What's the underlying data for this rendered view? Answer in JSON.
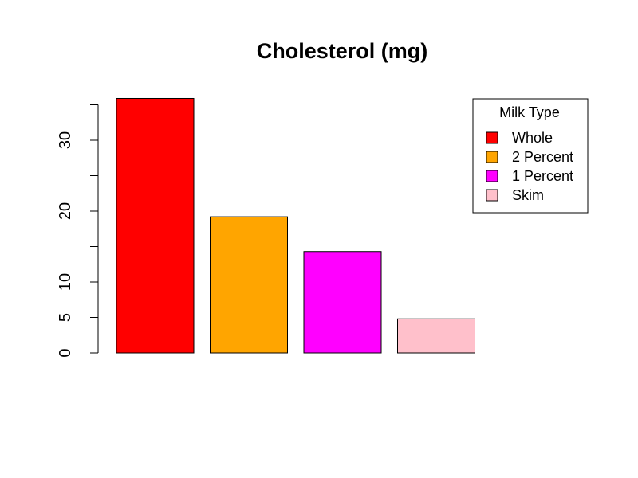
{
  "chart_data": {
    "type": "bar",
    "title": "Cholesterol (mg)",
    "xlabel": "",
    "ylabel": "",
    "categories": [
      "Whole",
      "2 Percent",
      "1 Percent",
      "Skim"
    ],
    "values": [
      35.9,
      19.2,
      14.3,
      4.8
    ],
    "colors": [
      "#FF0000",
      "#FFA500",
      "#FF00FF",
      "#FFC0CB"
    ],
    "ylim": [
      0,
      35
    ],
    "y_ticks": [
      0,
      5,
      10,
      20,
      30
    ],
    "y_tick_labels": [
      "0",
      "5",
      "10",
      "20",
      "30"
    ],
    "grid": false,
    "legend": {
      "title": "Milk Type",
      "placement": "top-right",
      "entries": [
        "Whole",
        "2 Percent",
        "1 Percent",
        "Skim"
      ]
    }
  }
}
